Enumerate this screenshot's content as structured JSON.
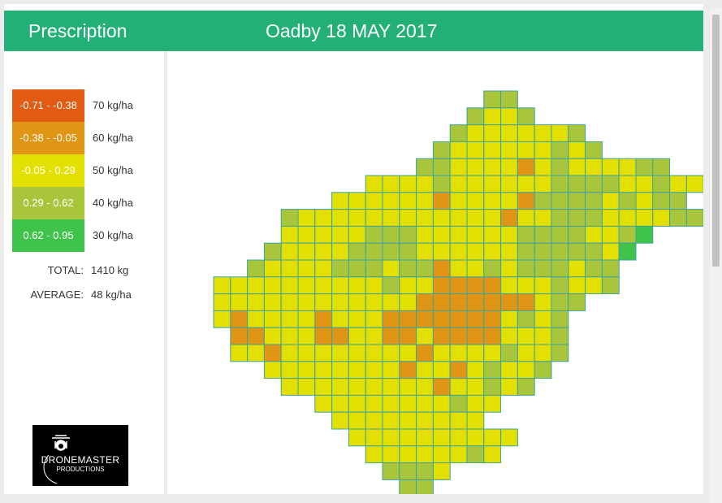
{
  "header": {
    "title": "Prescription",
    "field_date": "Oadby 18 MAY 2017",
    "color": "#22b077"
  },
  "legend": [
    {
      "range": "-0.71 - -0.38",
      "rate": "70 kg/ha",
      "color": "#e35a12"
    },
    {
      "range": "-0.38 - -0.05",
      "rate": "60 kg/ha",
      "color": "#e09514"
    },
    {
      "range": "-0.05 - 0.29",
      "rate": "50 kg/ha",
      "color": "#e3df00"
    },
    {
      "range": "0.29 - 0.62",
      "rate": "40 kg/ha",
      "color": "#a9c53c"
    },
    {
      "range": "0.62 - 0.95",
      "rate": "30 kg/ha",
      "color": "#3fc34a"
    }
  ],
  "stats": {
    "total_label": "TOTAL:",
    "total_value": "1410 kg",
    "average_label": "AVERAGE:",
    "average_value": "48 kg/ha"
  },
  "logo": {
    "line1": "DRONEMASTER",
    "line2": "PRODUCTIONS"
  },
  "map": {
    "cell_border": "#3aa5a0",
    "palette": {
      "Y": "#e3df00",
      "G": "#a9c53c",
      "O": "#e09514",
      "L": "#3fc34a"
    },
    "rows": [
      {
        "start": 16,
        "cells": "GG"
      },
      {
        "start": 15,
        "cells": "GYYG"
      },
      {
        "start": 14,
        "cells": "GYYYYYYG"
      },
      {
        "start": 13,
        "cells": "GYYYYYYGYG"
      },
      {
        "start": 12,
        "cells": "GGYYYYOYGYYYYGG"
      },
      {
        "start": 9,
        "cells": "YYYYGYYYYYYGGGGYYGYY"
      },
      {
        "start": 7,
        "cells": "YYYYYYOYYYYOGGGGYGYGG"
      },
      {
        "start": 4,
        "cells": "GYYYYYYYYYYYYOYYGGGYYYYGG"
      },
      {
        "start": 4,
        "cells": "YYYYYGGGYYYYYYGGGGYYGL"
      },
      {
        "start": 3,
        "cells": "GYYYYGGGGYYYYYYGGGGGYL"
      },
      {
        "start": 2,
        "cells": "GYYYYGGGYGGOYYGYGGGYGG"
      },
      {
        "start": 0,
        "cells": "YYYYYYYYYYGYYOOOOYYYGYYG"
      },
      {
        "start": 0,
        "cells": "YYYYYYYYYYYYOOOOOOOYGG"
      },
      {
        "start": 0,
        "cells": "YOYYYYOYYYOOOOOOOYGYG"
      },
      {
        "start": 1,
        "cells": "OOYYYOOYYOOYOOOOYYYG"
      },
      {
        "start": 1,
        "cells": "YYOYYYYYYYYOYYYYGYYG"
      },
      {
        "start": 3,
        "cells": "YYYYYYYYOYYOYGYYG"
      },
      {
        "start": 4,
        "cells": "YYYYYYYYYOYYGYG"
      },
      {
        "start": 6,
        "cells": "YYYYYYYYGYY"
      },
      {
        "start": 7,
        "cells": "YYYYYYYYY"
      },
      {
        "start": 8,
        "cells": "YYYYYYYYYY"
      },
      {
        "start": 9,
        "cells": "YYYYYYGY"
      },
      {
        "start": 10,
        "cells": "GGGY"
      },
      {
        "start": 11,
        "cells": "GG"
      }
    ]
  }
}
